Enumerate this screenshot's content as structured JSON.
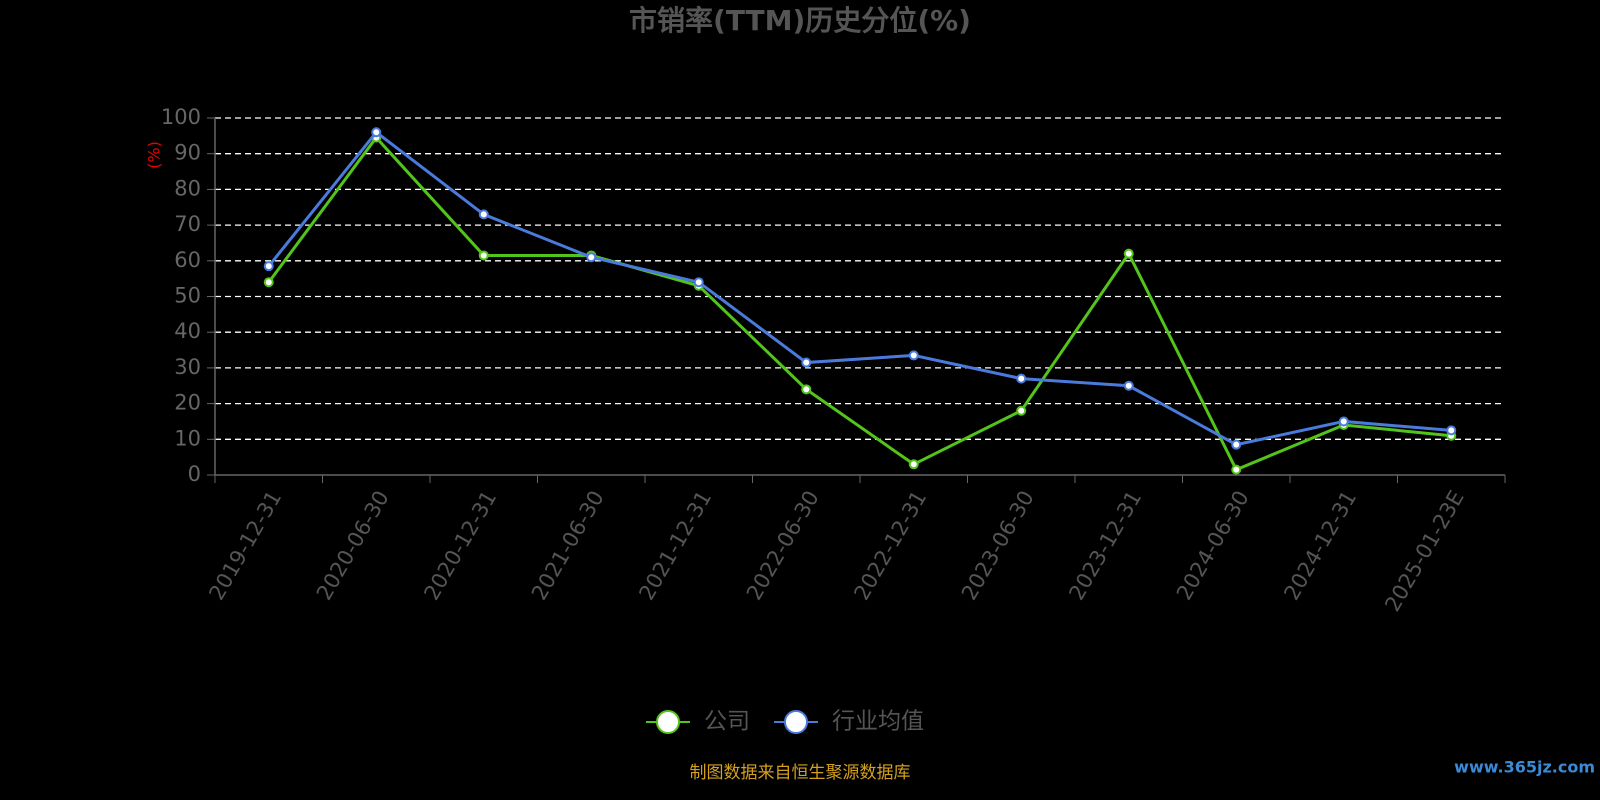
{
  "chart_data": {
    "type": "line",
    "title": "市销率(TTM)历史分位(%)",
    "y_label": "(%)",
    "categories": [
      "2019-12-31",
      "2020-06-30",
      "2020-12-31",
      "2021-06-30",
      "2021-12-31",
      "2022-06-30",
      "2022-12-31",
      "2023-06-30",
      "2023-12-31",
      "2024-06-30",
      "2024-12-31",
      "2025-01-23E"
    ],
    "series": [
      {
        "name": "公司",
        "color": "#52c41a",
        "values": [
          54,
          94.5,
          61.5,
          61.5,
          53,
          24,
          3,
          18,
          62,
          1.5,
          14,
          11
        ]
      },
      {
        "name": "行业均值",
        "color": "#4a7bdc",
        "values": [
          58.5,
          96,
          73,
          61,
          54,
          31.5,
          33.5,
          27,
          25,
          8.5,
          15,
          12.5
        ]
      }
    ],
    "ylim": [
      0,
      100
    ],
    "yticks": [
      0,
      10,
      20,
      30,
      40,
      50,
      60,
      70,
      80,
      90,
      100
    ],
    "grid": true,
    "source": "制图数据来自恒生聚源数据库",
    "watermark": "www.365jz.com"
  }
}
